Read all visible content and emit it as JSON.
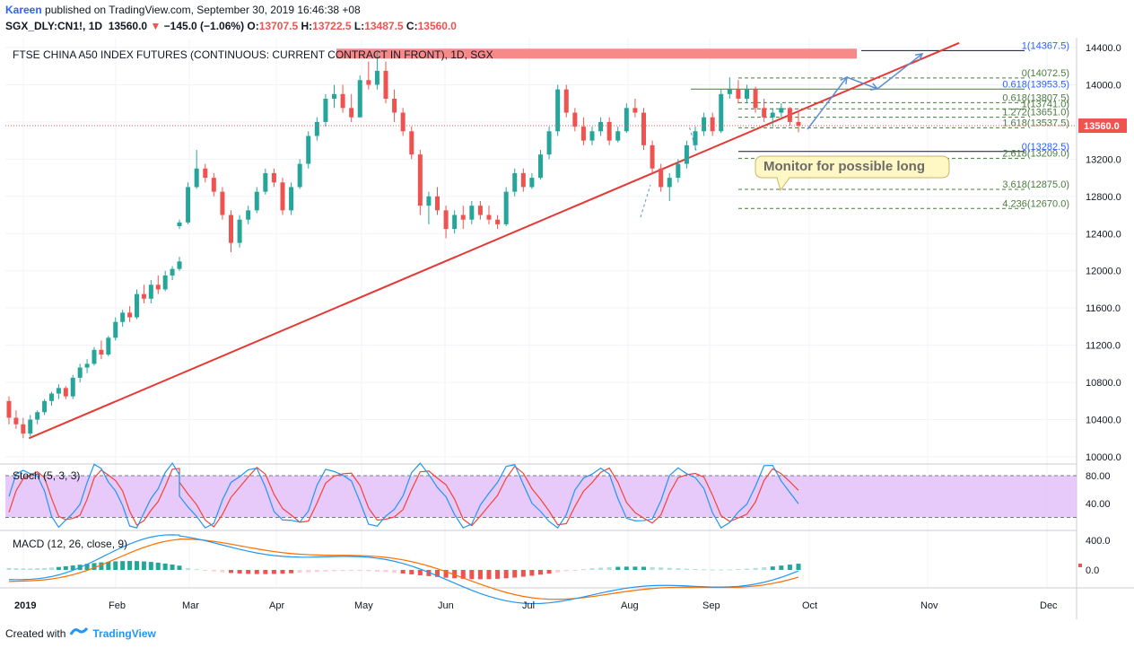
{
  "header": {
    "author": "Kareen",
    "published_text": "published on TradingView.com, September 30, 2019 16:46:38 +08",
    "symbol": "SGX_DLY:CN1!, 1D",
    "last": "13560.0",
    "change": "−145.0 (−1.06%)",
    "ohlc": {
      "o": "13707.5",
      "h": "13722.5",
      "l": "13487.5",
      "c": "13560.0"
    }
  },
  "footer": {
    "created_with": "Created with",
    "brand": "TradingView"
  },
  "chart_data": {
    "type": "candlestick",
    "title": "FTSE CHINA A50 INDEX FUTURES (CONTINUOUS: CURRENT CONTRACT IN FRONT), 1D, SGX",
    "price_axis": {
      "min": 10000,
      "max": 14400,
      "ticks": [
        "14400.0",
        "14000.0",
        "13600.0",
        "13200.0",
        "12800.0",
        "12400.0",
        "12000.0",
        "11600.0",
        "11200.0",
        "10800.0",
        "10400.0",
        "10000.0"
      ],
      "current_label": "13560.0",
      "current": 13560
    },
    "time_axis": {
      "labels": [
        "2019",
        "Feb",
        "Mar",
        "Apr",
        "May",
        "Jun",
        "Jul",
        "Aug",
        "Sep",
        "Oct",
        "Nov",
        "Dec"
      ],
      "start": "2019-01-02",
      "end": "2019-12-31"
    },
    "colors": {
      "up": "#26a69a",
      "down": "#ef5350",
      "trend": "#e53935",
      "projection": "#5b8fd1",
      "stoch_k": "#2196f3",
      "stoch_d": "#f44336",
      "macd": "#2196f3",
      "signal": "#ff6d00"
    },
    "candles_ohlc": [
      [
        10600,
        10650,
        10350,
        10420
      ],
      [
        10420,
        10500,
        10300,
        10350
      ],
      [
        10350,
        10420,
        10200,
        10250
      ],
      [
        10250,
        10450,
        10220,
        10400
      ],
      [
        10400,
        10500,
        10350,
        10480
      ],
      [
        10480,
        10620,
        10450,
        10600
      ],
      [
        10600,
        10700,
        10550,
        10680
      ],
      [
        10680,
        10780,
        10620,
        10740
      ],
      [
        10740,
        10760,
        10620,
        10650
      ],
      [
        10650,
        10880,
        10620,
        10850
      ],
      [
        10850,
        11000,
        10800,
        10960
      ],
      [
        10960,
        11050,
        10900,
        11000
      ],
      [
        11000,
        11180,
        10980,
        11150
      ],
      [
        11150,
        11250,
        11050,
        11100
      ],
      [
        11100,
        11300,
        11080,
        11280
      ],
      [
        11280,
        11500,
        11250,
        11450
      ],
      [
        11450,
        11580,
        11400,
        11550
      ],
      [
        11550,
        11620,
        11450,
        11500
      ],
      [
        11500,
        11800,
        11480,
        11750
      ],
      [
        11750,
        11850,
        11650,
        11700
      ],
      [
        11700,
        11900,
        11650,
        11850
      ],
      [
        11850,
        11950,
        11750,
        11800
      ],
      [
        11800,
        12000,
        11780,
        11950
      ],
      [
        11950,
        12050,
        11900,
        12020
      ],
      [
        12020,
        12150,
        12000,
        12100
      ],
      [
        12480,
        12550,
        12450,
        12520
      ],
      [
        12520,
        12950,
        12500,
        12900
      ],
      [
        12900,
        13300,
        12880,
        13100
      ],
      [
        13100,
        13150,
        12950,
        13000
      ],
      [
        13000,
        13050,
        12800,
        12850
      ],
      [
        12850,
        12900,
        12550,
        12600
      ],
      [
        12600,
        12650,
        12200,
        12300
      ],
      [
        12300,
        12600,
        12250,
        12550
      ],
      [
        12550,
        12700,
        12500,
        12650
      ],
      [
        12650,
        12900,
        12620,
        12850
      ],
      [
        12850,
        13100,
        12820,
        13050
      ],
      [
        13050,
        13100,
        12900,
        12950
      ],
      [
        12950,
        13000,
        12600,
        12650
      ],
      [
        12650,
        12950,
        12600,
        12900
      ],
      [
        12900,
        13200,
        12880,
        13150
      ],
      [
        13150,
        13500,
        13100,
        13450
      ],
      [
        13450,
        13650,
        13400,
        13600
      ],
      [
        13600,
        13900,
        13550,
        13850
      ],
      [
        13850,
        14000,
        13750,
        13900
      ],
      [
        13900,
        14000,
        13700,
        13750
      ],
      [
        13750,
        13900,
        13600,
        13650
      ],
      [
        13650,
        14100,
        13650,
        14050
      ],
      [
        14050,
        14250,
        13950,
        14000
      ],
      [
        14000,
        14350,
        13950,
        14150
      ],
      [
        14150,
        14250,
        13800,
        13850
      ],
      [
        13850,
        13950,
        13600,
        13700
      ],
      [
        13700,
        13750,
        13450,
        13500
      ],
      [
        13500,
        13550,
        13200,
        13250
      ],
      [
        13250,
        13300,
        12600,
        12700
      ],
      [
        12700,
        12850,
        12500,
        12800
      ],
      [
        12800,
        12900,
        12600,
        12650
      ],
      [
        12650,
        12700,
        12350,
        12450
      ],
      [
        12450,
        12650,
        12400,
        12600
      ],
      [
        12600,
        12700,
        12450,
        12550
      ],
      [
        12550,
        12750,
        12500,
        12700
      ],
      [
        12700,
        12750,
        12550,
        12600
      ],
      [
        12600,
        12700,
        12500,
        12550
      ],
      [
        12550,
        12600,
        12450,
        12500
      ],
      [
        12500,
        12900,
        12480,
        12850
      ],
      [
        12850,
        13100,
        12800,
        13050
      ],
      [
        13050,
        13100,
        12850,
        12900
      ],
      [
        12900,
        13050,
        12880,
        13000
      ],
      [
        13000,
        13300,
        12980,
        13250
      ],
      [
        13250,
        13550,
        13200,
        13500
      ],
      [
        13500,
        14000,
        13450,
        13950
      ],
      [
        13950,
        14000,
        13650,
        13700
      ],
      [
        13700,
        13750,
        13500,
        13550
      ],
      [
        13550,
        13650,
        13350,
        13400
      ],
      [
        13400,
        13550,
        13350,
        13500
      ],
      [
        13500,
        13650,
        13450,
        13600
      ],
      [
        13600,
        13650,
        13350,
        13400
      ],
      [
        13400,
        13550,
        13380,
        13500
      ],
      [
        13500,
        13800,
        13480,
        13750
      ],
      [
        13750,
        13850,
        13650,
        13700
      ],
      [
        13700,
        13750,
        13300,
        13350
      ],
      [
        13350,
        13400,
        13050,
        13100
      ],
      [
        13100,
        13150,
        12850,
        12900
      ],
      [
        12900,
        13050,
        12750,
        13000
      ],
      [
        13000,
        13200,
        12950,
        13150
      ],
      [
        13150,
        13400,
        13100,
        13350
      ],
      [
        13350,
        13550,
        13300,
        13500
      ],
      [
        13500,
        13700,
        13450,
        13650
      ],
      [
        13650,
        13700,
        13450,
        13500
      ],
      [
        13500,
        13950,
        13480,
        13900
      ],
      [
        13900,
        14080,
        13850,
        13950
      ],
      [
        13950,
        14050,
        13800,
        13850
      ],
      [
        13850,
        14000,
        13800,
        13950
      ],
      [
        13950,
        13980,
        13700,
        13750
      ],
      [
        13750,
        13850,
        13600,
        13650
      ],
      [
        13650,
        13750,
        13550,
        13700
      ],
      [
        13700,
        13800,
        13650,
        13750
      ],
      [
        13750,
        13760,
        13560,
        13600
      ],
      [
        13600,
        13720,
        13490,
        13560
      ]
    ],
    "fib_levels": [
      {
        "label": "0(14072.5)",
        "value": 14072.5
      },
      {
        "label": "0.618(13953.5)",
        "value": 13953.5
      },
      {
        "label": "0.618(13807.5)",
        "value": 13807.5
      },
      {
        "label": "1(13741.0)",
        "value": 13741
      },
      {
        "label": "1.272(13651.0)",
        "value": 13651
      },
      {
        "label": "1.618(13537.5)",
        "value": 13537.5
      },
      {
        "label": "0(13282.5)",
        "value": 13282.5
      },
      {
        "label": "2.618(13209.0)",
        "value": 13209
      },
      {
        "label": "3.618(12875.0)",
        "value": 12875
      },
      {
        "label": "4.236(12670.0)",
        "value": 12670
      },
      {
        "label": "1(14367.5)",
        "value": 14367.5
      }
    ],
    "annotation": "Monitor for possible long",
    "trendline": {
      "from": [
        "2019-01-04",
        10200
      ],
      "to": [
        "2019-11-29",
        14450
      ]
    },
    "resistance_zone": {
      "value": 14330
    },
    "stoch": {
      "label": "Stoch (5, 3, 3)",
      "ticks": [
        "80.00",
        "40.00"
      ],
      "upper": 80,
      "lower": 20
    },
    "macd": {
      "label": "MACD (12, 26, close, 9)",
      "ticks": [
        "400.0",
        "0.0"
      ]
    }
  }
}
